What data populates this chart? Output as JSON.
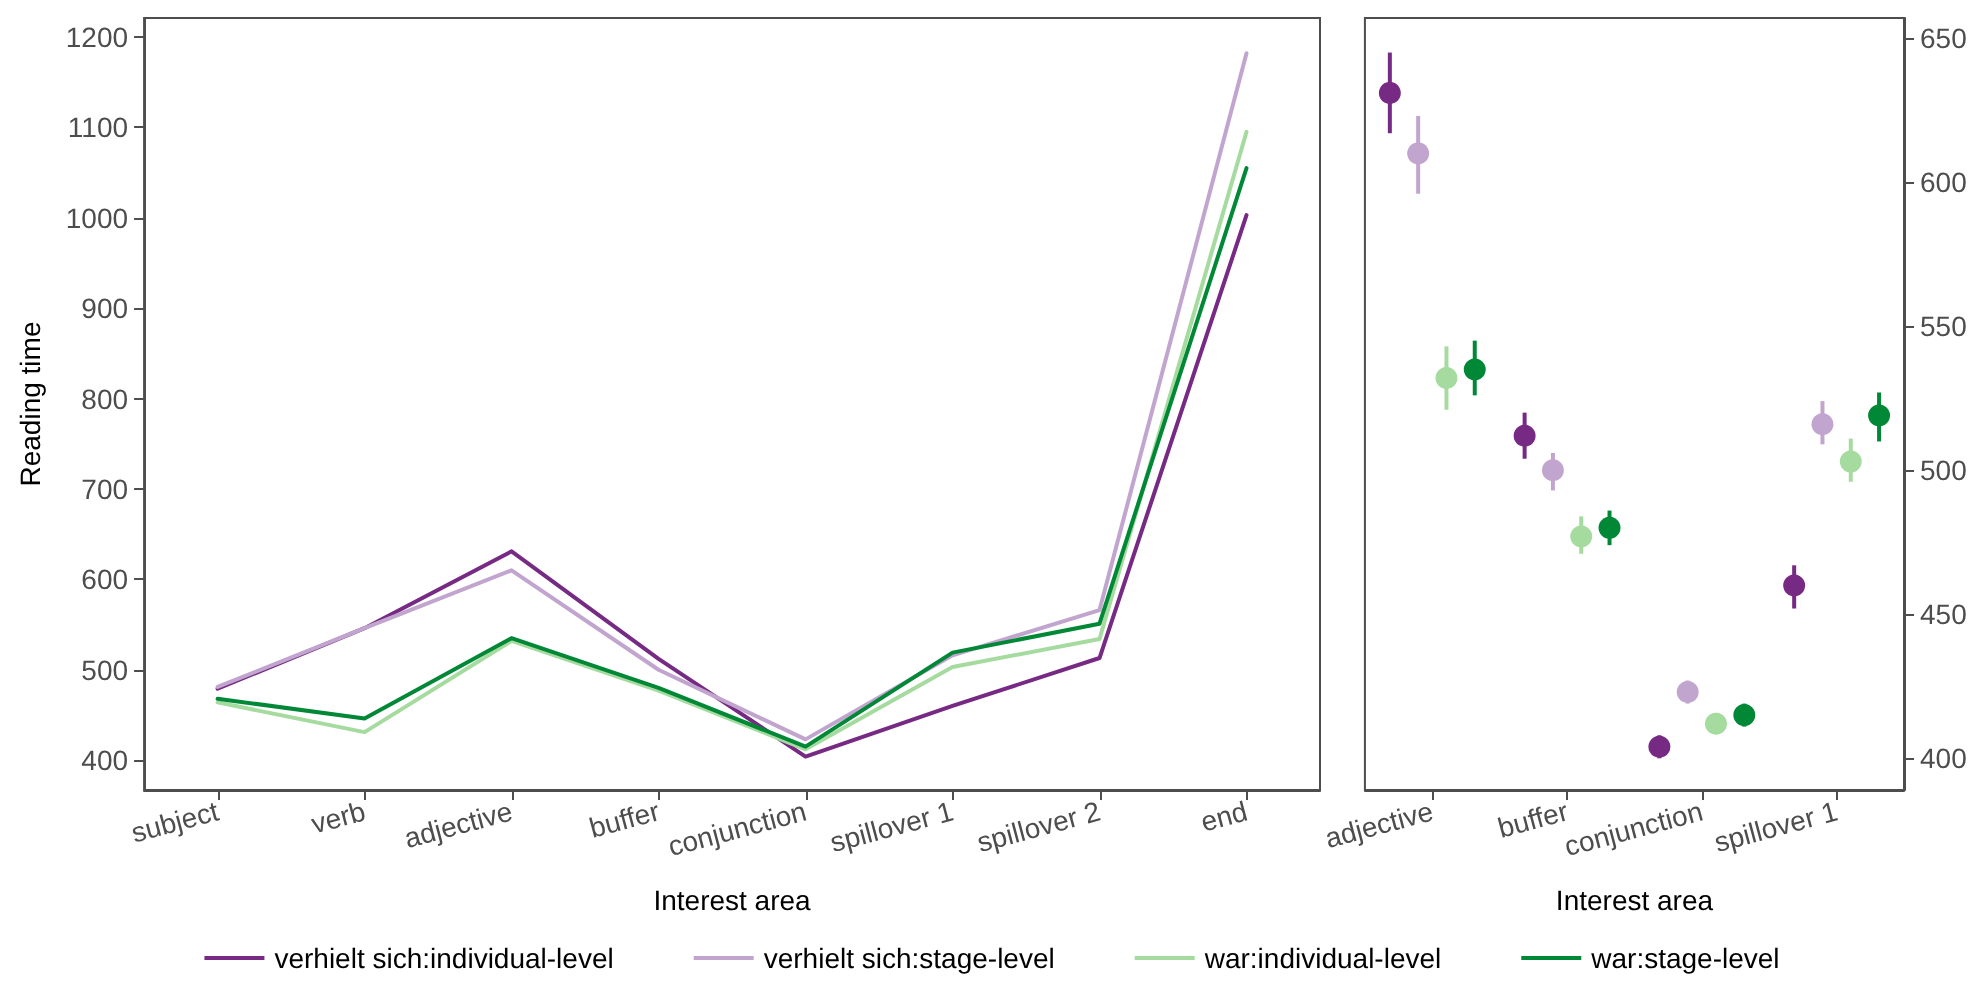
{
  "chart_data": [
    {
      "type": "line",
      "xlabel": "Interest area",
      "ylabel": "Reading time",
      "legend": "bottom",
      "line_style": "solid",
      "categories": [
        "subject",
        "verb",
        "adjective",
        "buffer",
        "conjunction",
        "spillover 1",
        "spillover 2",
        "end"
      ],
      "ylim": [
        367,
        1221
      ],
      "yticks": [
        400,
        500,
        600,
        700,
        800,
        900,
        1000,
        1100,
        1200
      ],
      "series": [
        {
          "name": "verhielt sich:individual-level",
          "color": "#762a83",
          "values": [
            479,
            546,
            631,
            512,
            404,
            460,
            513,
            1003
          ]
        },
        {
          "name": "verhielt sich:stage-level",
          "color": "#c2a5cf",
          "values": [
            481,
            546,
            610,
            500,
            423,
            516,
            566,
            1182
          ]
        },
        {
          "name": "war:individual-level",
          "color": "#a6dba0",
          "values": [
            464,
            431,
            532,
            477,
            412,
            503,
            534,
            1095
          ]
        },
        {
          "name": "war:stage-level",
          "color": "#008837",
          "values": [
            468,
            446,
            535,
            480,
            415,
            519,
            551,
            1055
          ]
        }
      ]
    },
    {
      "type": "scatter",
      "xlabel": "Interest area",
      "marker": "circle",
      "categories": [
        "adjective",
        "buffer",
        "conjunction",
        "spillover 1"
      ],
      "ylim": [
        389,
        657
      ],
      "yticks": [
        400,
        450,
        500,
        550,
        600,
        650
      ],
      "series": [
        {
          "color": "#762a83",
          "values": [
            631,
            512,
            404,
            460
          ],
          "errors": [
            [
              617,
              645
            ],
            [
              504,
              520
            ],
            [
              400,
              408
            ],
            [
              452,
              467
            ]
          ]
        },
        {
          "color": "#c2a5cf",
          "values": [
            610,
            500,
            423,
            516
          ],
          "errors": [
            [
              596,
              623
            ],
            [
              493,
              506
            ],
            [
              419,
              427
            ],
            [
              509,
              524
            ]
          ]
        },
        {
          "color": "#a6dba0",
          "values": [
            532,
            477,
            412,
            503
          ],
          "errors": [
            [
              521,
              543
            ],
            [
              471,
              484
            ],
            [
              409,
              415
            ],
            [
              496,
              511
            ]
          ]
        },
        {
          "color": "#008837",
          "values": [
            535,
            480,
            415,
            519
          ],
          "errors": [
            [
              526,
              545
            ],
            [
              474,
              486
            ],
            [
              411,
              419
            ],
            [
              510,
              527
            ]
          ]
        }
      ]
    }
  ]
}
